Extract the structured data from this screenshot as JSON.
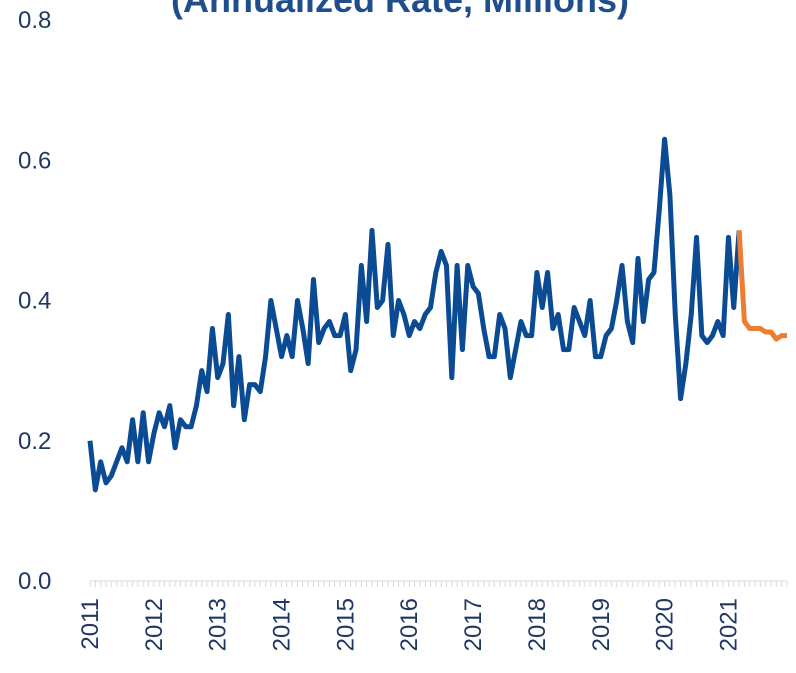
{
  "chart_data": {
    "type": "line",
    "title": "(Annualized Rate, Millions)",
    "x": [
      2011,
      2011.083,
      2011.167,
      2011.25,
      2011.333,
      2011.417,
      2011.5,
      2011.583,
      2011.667,
      2011.75,
      2011.833,
      2011.917,
      2012,
      2012.083,
      2012.167,
      2012.25,
      2012.333,
      2012.417,
      2012.5,
      2012.583,
      2012.667,
      2012.75,
      2012.833,
      2012.917,
      2013,
      2013.083,
      2013.167,
      2013.25,
      2013.333,
      2013.417,
      2013.5,
      2013.583,
      2013.667,
      2013.75,
      2013.833,
      2013.917,
      2014,
      2014.083,
      2014.167,
      2014.25,
      2014.333,
      2014.417,
      2014.5,
      2014.583,
      2014.667,
      2014.75,
      2014.833,
      2014.917,
      2015,
      2015.083,
      2015.167,
      2015.25,
      2015.333,
      2015.417,
      2015.5,
      2015.583,
      2015.667,
      2015.75,
      2015.833,
      2015.917,
      2016,
      2016.083,
      2016.167,
      2016.25,
      2016.333,
      2016.417,
      2016.5,
      2016.583,
      2016.667,
      2016.75,
      2016.833,
      2016.917,
      2017,
      2017.083,
      2017.167,
      2017.25,
      2017.333,
      2017.417,
      2017.5,
      2017.583,
      2017.667,
      2017.75,
      2017.833,
      2017.917,
      2018,
      2018.083,
      2018.167,
      2018.25,
      2018.333,
      2018.417,
      2018.5,
      2018.583,
      2018.667,
      2018.75,
      2018.833,
      2018.917,
      2019,
      2019.083,
      2019.167,
      2019.25,
      2019.333,
      2019.417,
      2019.5,
      2019.583,
      2019.667,
      2019.75,
      2019.833,
      2019.917,
      2020,
      2020.083,
      2020.167,
      2020.25,
      2020.333,
      2020.417,
      2020.5,
      2020.583,
      2020.667,
      2020.75,
      2020.833,
      2020.917,
      2021,
      2021.083,
      2021.167,
      2021.25,
      2021.333,
      2021.417,
      2021.5,
      2021.583,
      2021.667,
      2021.75,
      2021.833,
      2021.917
    ],
    "series": [
      {
        "color": "#0b4b93",
        "values": [
          0.2,
          0.13,
          0.17,
          0.14,
          0.15,
          0.17,
          0.19,
          0.17,
          0.23,
          0.17,
          0.24,
          0.17,
          0.21,
          0.24,
          0.22,
          0.25,
          0.19,
          0.23,
          0.22,
          0.22,
          0.25,
          0.3,
          0.27,
          0.36,
          0.29,
          0.31,
          0.38,
          0.25,
          0.32,
          0.23,
          0.28,
          0.28,
          0.27,
          0.32,
          0.4,
          0.36,
          0.32,
          0.35,
          0.32,
          0.4,
          0.36,
          0.31,
          0.43,
          0.34,
          0.36,
          0.37,
          0.35,
          0.35,
          0.38,
          0.3,
          0.33,
          0.45,
          0.37,
          0.5,
          0.39,
          0.4,
          0.48,
          0.35,
          0.4,
          0.38,
          0.35,
          0.37,
          0.36,
          0.38,
          0.39,
          0.44,
          0.47,
          0.45,
          0.29,
          0.45,
          0.33,
          0.45,
          0.42,
          0.41,
          0.36,
          0.32,
          0.32,
          0.38,
          0.36,
          0.29,
          0.33,
          0.37,
          0.35,
          0.35,
          0.44,
          0.39,
          0.44,
          0.36,
          0.38,
          0.33,
          0.33,
          0.39,
          0.37,
          0.35,
          0.4,
          0.32,
          0.32,
          0.35,
          0.36,
          0.4,
          0.45,
          0.37,
          0.34,
          0.46,
          0.37,
          0.43,
          0.44,
          0.53,
          0.63,
          0.55,
          0.38,
          0.26,
          0.31,
          0.38,
          0.49,
          0.35,
          0.34,
          0.35,
          0.37,
          0.35,
          0.49,
          0.39,
          0.5,
          null,
          null,
          null,
          null,
          null,
          null,
          null,
          null,
          null
        ]
      },
      {
        "color": "#ed7d31",
        "values": [
          null,
          null,
          null,
          null,
          null,
          null,
          null,
          null,
          null,
          null,
          null,
          null,
          null,
          null,
          null,
          null,
          null,
          null,
          null,
          null,
          null,
          null,
          null,
          null,
          null,
          null,
          null,
          null,
          null,
          null,
          null,
          null,
          null,
          null,
          null,
          null,
          null,
          null,
          null,
          null,
          null,
          null,
          null,
          null,
          null,
          null,
          null,
          null,
          null,
          null,
          null,
          null,
          null,
          null,
          null,
          null,
          null,
          null,
          null,
          null,
          null,
          null,
          null,
          null,
          null,
          null,
          null,
          null,
          null,
          null,
          null,
          null,
          null,
          null,
          null,
          null,
          null,
          null,
          null,
          null,
          null,
          null,
          null,
          null,
          null,
          null,
          null,
          null,
          null,
          null,
          null,
          null,
          null,
          null,
          null,
          null,
          null,
          null,
          null,
          null,
          null,
          null,
          null,
          null,
          null,
          null,
          null,
          null,
          null,
          null,
          null,
          null,
          null,
          null,
          null,
          null,
          null,
          null,
          null,
          null,
          null,
          null,
          0.5,
          0.37,
          0.36,
          0.36,
          0.36,
          0.355,
          0.355,
          0.345,
          0.35,
          0.35
        ]
      }
    ],
    "xlim": [
      2011,
      2021.917
    ],
    "xticks": [
      2011,
      2012,
      2013,
      2014,
      2015,
      2016,
      2017,
      2018,
      2019,
      2020,
      2021
    ],
    "ylim": [
      0,
      0.8
    ],
    "yticks": [
      {
        "value": 0,
        "label": "0.0"
      },
      0.2,
      0.4,
      0.6,
      0.8
    ],
    "grid": false
  }
}
